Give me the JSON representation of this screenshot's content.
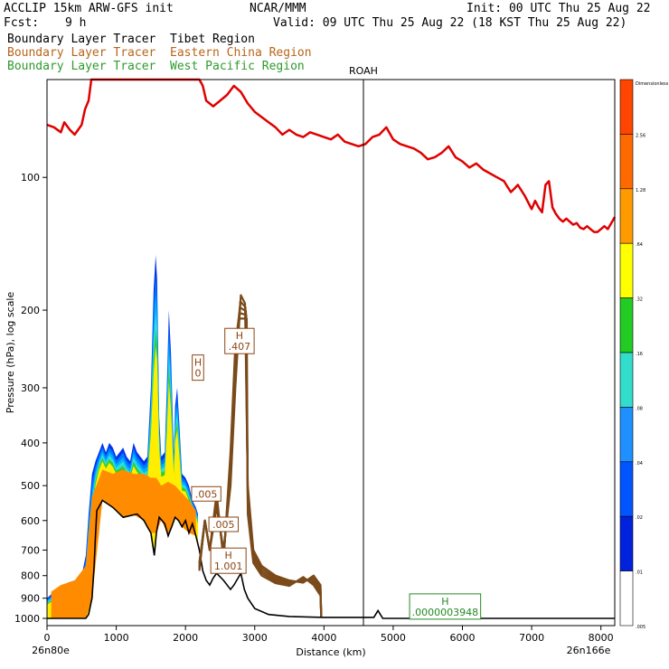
{
  "header": {
    "model": "ACCLIP 15km ARW-GFS init",
    "center": "NCAR/MMM",
    "init": "Init: 00 UTC Thu 25 Aug 22",
    "fcst_label": "Fcst:",
    "fcst_value": "9 h",
    "valid": "Valid: 09 UTC Thu 25 Aug 22 (18 KST Thu 25 Aug 22)"
  },
  "legend": [
    {
      "label": "Boundary Layer Tracer",
      "region": "Tibet Region",
      "color": "#000000"
    },
    {
      "label": "Boundary Layer Tracer",
      "region": "Eastern China Region",
      "color": "#8B4513"
    },
    {
      "label": "Boundary Layer Tracer",
      "region": "West Pacific Region",
      "color": "#228B22"
    }
  ],
  "chart_data": {
    "type": "area",
    "xlabel": "Distance (km)",
    "ylabel": "Pressure (hPa), log scale",
    "xlim": [
      0,
      8200
    ],
    "ylim": [
      1000,
      60
    ],
    "y_scale": "log",
    "x_ticks": [
      0,
      1000,
      2000,
      3000,
      4000,
      5000,
      6000,
      7000,
      8000
    ],
    "y_ticks": [
      100,
      200,
      300,
      400,
      500,
      600,
      700,
      800,
      900,
      1000
    ],
    "x_start_label": "26n80e",
    "x_end_label": "26n166e",
    "marker": {
      "label": "ROAH",
      "x": 4570
    },
    "terrain_color": "#000000",
    "tropopause_color": "#e00000",
    "tracer_east_color": "#7a4a1a",
    "terrain": [
      [
        0,
        1000
      ],
      [
        560,
        1000
      ],
      [
        600,
        980
      ],
      [
        650,
        900
      ],
      [
        680,
        760
      ],
      [
        700,
        650
      ],
      [
        720,
        570
      ],
      [
        800,
        540
      ],
      [
        950,
        560
      ],
      [
        1100,
        590
      ],
      [
        1300,
        580
      ],
      [
        1400,
        600
      ],
      [
        1450,
        620
      ],
      [
        1500,
        640
      ],
      [
        1550,
        720
      ],
      [
        1580,
        640
      ],
      [
        1620,
        590
      ],
      [
        1700,
        610
      ],
      [
        1750,
        650
      ],
      [
        1800,
        620
      ],
      [
        1850,
        590
      ],
      [
        1900,
        600
      ],
      [
        1950,
        620
      ],
      [
        2000,
        600
      ],
      [
        2050,
        640
      ],
      [
        2100,
        610
      ],
      [
        2150,
        650
      ],
      [
        2200,
        700
      ],
      [
        2250,
        780
      ],
      [
        2300,
        820
      ],
      [
        2350,
        840
      ],
      [
        2400,
        810
      ],
      [
        2450,
        790
      ],
      [
        2550,
        820
      ],
      [
        2650,
        860
      ],
      [
        2700,
        840
      ],
      [
        2800,
        790
      ],
      [
        2850,
        860
      ],
      [
        2900,
        900
      ],
      [
        3000,
        950
      ],
      [
        3200,
        980
      ],
      [
        3500,
        990
      ],
      [
        4000,
        995
      ],
      [
        4600,
        995
      ],
      [
        4720,
        995
      ],
      [
        4780,
        960
      ],
      [
        4850,
        1000
      ],
      [
        5500,
        1000
      ],
      [
        6500,
        1000
      ],
      [
        7500,
        1000
      ],
      [
        8200,
        1000
      ]
    ],
    "tropopause": [
      [
        0,
        76
      ],
      [
        100,
        77
      ],
      [
        200,
        79
      ],
      [
        250,
        75
      ],
      [
        330,
        78
      ],
      [
        400,
        80
      ],
      [
        500,
        76
      ],
      [
        550,
        70
      ],
      [
        600,
        67
      ],
      [
        640,
        60
      ],
      [
        2200,
        60
      ],
      [
        2250,
        62
      ],
      [
        2300,
        67
      ],
      [
        2350,
        68
      ],
      [
        2400,
        69
      ],
      [
        2500,
        67
      ],
      [
        2600,
        65
      ],
      [
        2700,
        62
      ],
      [
        2800,
        64
      ],
      [
        2900,
        68
      ],
      [
        3000,
        71
      ],
      [
        3100,
        73
      ],
      [
        3200,
        75
      ],
      [
        3300,
        77
      ],
      [
        3400,
        80
      ],
      [
        3500,
        78
      ],
      [
        3600,
        80
      ],
      [
        3700,
        81
      ],
      [
        3800,
        79
      ],
      [
        3900,
        80
      ],
      [
        4000,
        81
      ],
      [
        4100,
        82
      ],
      [
        4200,
        80
      ],
      [
        4300,
        83
      ],
      [
        4400,
        84
      ],
      [
        4500,
        85
      ],
      [
        4600,
        84
      ],
      [
        4700,
        81
      ],
      [
        4800,
        80
      ],
      [
        4900,
        77
      ],
      [
        5000,
        82
      ],
      [
        5100,
        84
      ],
      [
        5200,
        85
      ],
      [
        5300,
        86
      ],
      [
        5400,
        88
      ],
      [
        5500,
        91
      ],
      [
        5600,
        90
      ],
      [
        5700,
        88
      ],
      [
        5800,
        85
      ],
      [
        5900,
        90
      ],
      [
        6000,
        92
      ],
      [
        6100,
        95
      ],
      [
        6200,
        93
      ],
      [
        6300,
        96
      ],
      [
        6400,
        98
      ],
      [
        6500,
        100
      ],
      [
        6600,
        102
      ],
      [
        6650,
        105
      ],
      [
        6700,
        108
      ],
      [
        6750,
        106
      ],
      [
        6800,
        104
      ],
      [
        6850,
        107
      ],
      [
        6900,
        110
      ],
      [
        6950,
        114
      ],
      [
        7000,
        118
      ],
      [
        7050,
        113
      ],
      [
        7100,
        117
      ],
      [
        7150,
        120
      ],
      [
        7200,
        104
      ],
      [
        7250,
        102
      ],
      [
        7300,
        117
      ],
      [
        7350,
        121
      ],
      [
        7400,
        124
      ],
      [
        7450,
        126
      ],
      [
        7500,
        124
      ],
      [
        7550,
        126
      ],
      [
        7600,
        128
      ],
      [
        7650,
        127
      ],
      [
        7700,
        130
      ],
      [
        7750,
        131
      ],
      [
        7800,
        129
      ],
      [
        7850,
        131
      ],
      [
        7900,
        133
      ],
      [
        7950,
        133
      ],
      [
        8000,
        131
      ],
      [
        8050,
        129
      ],
      [
        8100,
        131
      ],
      [
        8150,
        127
      ],
      [
        8200,
        123
      ]
    ],
    "tracer_tibet": {
      "levels": [
        0.01,
        0.02,
        0.04,
        0.08,
        0.16,
        0.32,
        0.64,
        1.28,
        2.56
      ],
      "colors": [
        "#0033ff",
        "#0066ff",
        "#00aaff",
        "#00dddd",
        "#22cc22",
        "#dddd00",
        "#ffcc00",
        "#ff8800",
        "#ff5500"
      ],
      "envelope": [
        [
          0,
          900
        ],
        [
          100,
          870
        ],
        [
          200,
          850
        ],
        [
          300,
          830
        ],
        [
          400,
          820
        ],
        [
          500,
          800
        ],
        [
          560,
          720
        ],
        [
          600,
          580
        ],
        [
          650,
          470
        ],
        [
          700,
          440
        ],
        [
          750,
          420
        ],
        [
          800,
          400
        ],
        [
          850,
          420
        ],
        [
          900,
          400
        ],
        [
          950,
          410
        ],
        [
          1000,
          430
        ],
        [
          1050,
          420
        ],
        [
          1100,
          410
        ],
        [
          1150,
          430
        ],
        [
          1200,
          440
        ],
        [
          1250,
          400
        ],
        [
          1300,
          420
        ],
        [
          1350,
          430
        ],
        [
          1400,
          440
        ],
        [
          1450,
          430
        ],
        [
          1500,
          300
        ],
        [
          1540,
          180
        ],
        [
          1570,
          150
        ],
        [
          1590,
          170
        ],
        [
          1620,
          350
        ],
        [
          1650,
          430
        ],
        [
          1700,
          420
        ],
        [
          1730,
          300
        ],
        [
          1760,
          200
        ],
        [
          1790,
          250
        ],
        [
          1830,
          420
        ],
        [
          1850,
          330
        ],
        [
          1880,
          300
        ],
        [
          1910,
          360
        ],
        [
          1950,
          470
        ],
        [
          2000,
          480
        ],
        [
          2050,
          500
        ],
        [
          2100,
          540
        ],
        [
          2150,
          560
        ],
        [
          2180,
          580
        ]
      ],
      "core": [
        [
          60,
          870
        ],
        [
          200,
          840
        ],
        [
          400,
          820
        ],
        [
          560,
          760
        ],
        [
          650,
          530
        ],
        [
          800,
          460
        ],
        [
          950,
          470
        ],
        [
          1100,
          460
        ],
        [
          1250,
          470
        ],
        [
          1400,
          470
        ],
        [
          1500,
          480
        ],
        [
          1580,
          480
        ],
        [
          1650,
          500
        ],
        [
          1750,
          490
        ],
        [
          1850,
          500
        ],
        [
          1950,
          520
        ],
        [
          2050,
          540
        ],
        [
          2150,
          570
        ]
      ]
    },
    "tracer_east": {
      "peak_x": 2820,
      "peak_top": 185,
      "right_edge": 4000
    },
    "annotations": [
      {
        "kind": "box",
        "lines": [
          "H",
          "0"
        ],
        "x": 2180,
        "y": 270,
        "color": "#8B4513"
      },
      {
        "kind": "box",
        "lines": [
          "H",
          ".407"
        ],
        "x": 2780,
        "y": 235,
        "color": "#8B4513"
      },
      {
        "kind": "box",
        "lines": [
          ".005"
        ],
        "x": 2300,
        "y": 522,
        "color": "#8B4513"
      },
      {
        "kind": "box",
        "lines": [
          ".005"
        ],
        "x": 2550,
        "y": 612,
        "color": "#8B4513"
      },
      {
        "kind": "box",
        "lines": [
          "H",
          "1.001"
        ],
        "x": 2620,
        "y": 740,
        "color": "#8B4513"
      },
      {
        "kind": "box",
        "lines": [
          "H",
          ".0000003948"
        ],
        "x": 5750,
        "y": 940,
        "color": "#228B22"
      }
    ],
    "colorbar": {
      "labels": [
        "Dimensionless",
        "2.56",
        "1.28",
        ".64",
        ".32",
        ".16",
        ".08",
        ".04",
        ".02",
        ".01",
        ".005"
      ],
      "colors": [
        "#ff4500",
        "#ff6a00",
        "#ff9a00",
        "#ffff00",
        "#22cc22",
        "#33ddcc",
        "#1e90ff",
        "#0055ff",
        "#0022dd",
        "#ffffff"
      ]
    }
  }
}
